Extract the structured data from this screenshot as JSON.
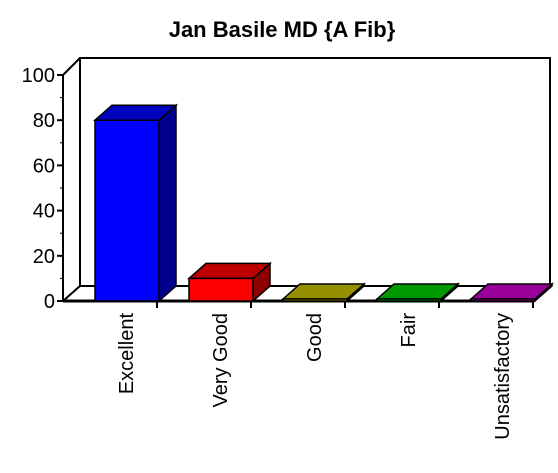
{
  "chart_data": {
    "type": "bar",
    "title": "Jan Basile MD {A Fib}",
    "xlabel": "",
    "ylabel": "",
    "categories": [
      "Excellent",
      "Very Good",
      "Good",
      "Fair",
      "Unsatisfactory"
    ],
    "values": [
      80,
      10,
      0,
      0,
      0
    ],
    "colors": [
      "#0000ff",
      "#ff0000",
      "#c8be00",
      "#00cc00",
      "#cc00cc"
    ],
    "ylim": [
      0,
      100
    ],
    "yticks": [
      "0",
      "20",
      "40",
      "60",
      "80",
      "100"
    ],
    "style": "3d",
    "grid": false,
    "legend": "none"
  }
}
